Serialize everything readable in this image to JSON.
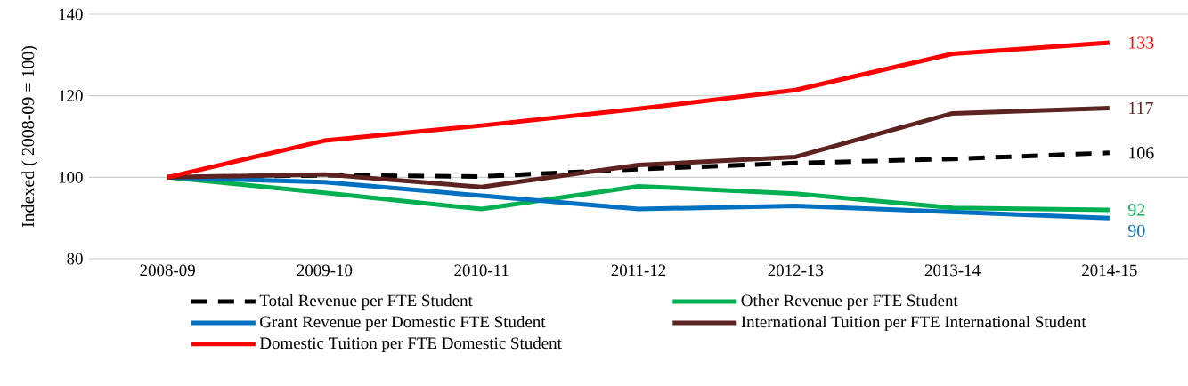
{
  "chart_data": {
    "type": "line",
    "ylabel": "Indexed ( 2008-09 = 100)",
    "categories": [
      "2008-09",
      "2009-10",
      "2010-11",
      "2011-12",
      "2012-13",
      "2013-14",
      "2014-15"
    ],
    "ylim": [
      80,
      140
    ],
    "yticks": [
      80,
      100,
      120,
      140
    ],
    "grid": "y",
    "legend": "bottom",
    "marker": "none",
    "series": [
      {
        "name": "Total Revenue per FTE Student",
        "color": "#000000",
        "line_style": "dashed",
        "values": [
          100,
          100.5,
          100.2,
          102,
          103.5,
          104.5,
          106
        ],
        "value_labels": [
          null,
          null,
          null,
          null,
          null,
          null,
          "106"
        ]
      },
      {
        "name": "Other Revenue per FTE Student",
        "color": "#00b050",
        "line_style": "solid",
        "values": [
          100,
          96.2,
          92.2,
          97.8,
          96,
          92.5,
          92
        ],
        "value_labels": [
          null,
          null,
          null,
          null,
          null,
          null,
          "92"
        ]
      },
      {
        "name": "Grant Revenue per Domestic FTE Student",
        "color": "#0070c0",
        "line_style": "solid",
        "values": [
          100,
          98.8,
          95.5,
          92.2,
          93,
          91.5,
          90
        ],
        "value_labels": [
          null,
          null,
          null,
          null,
          null,
          null,
          "90"
        ]
      },
      {
        "name": "International Tuition per FTE International Student",
        "color": "#5c2320",
        "line_style": "solid",
        "values": [
          100,
          100.7,
          97.6,
          103,
          105,
          115.7,
          117
        ],
        "value_labels": [
          null,
          null,
          null,
          null,
          null,
          null,
          "117"
        ]
      },
      {
        "name": "Domestic Tuition per FTE Domestic Student",
        "color": "#ff0000",
        "line_style": "solid",
        "values": [
          100,
          109,
          112.7,
          116.8,
          121.4,
          130.3,
          133
        ],
        "value_labels": [
          null,
          null,
          null,
          null,
          null,
          null,
          "133"
        ]
      }
    ]
  }
}
